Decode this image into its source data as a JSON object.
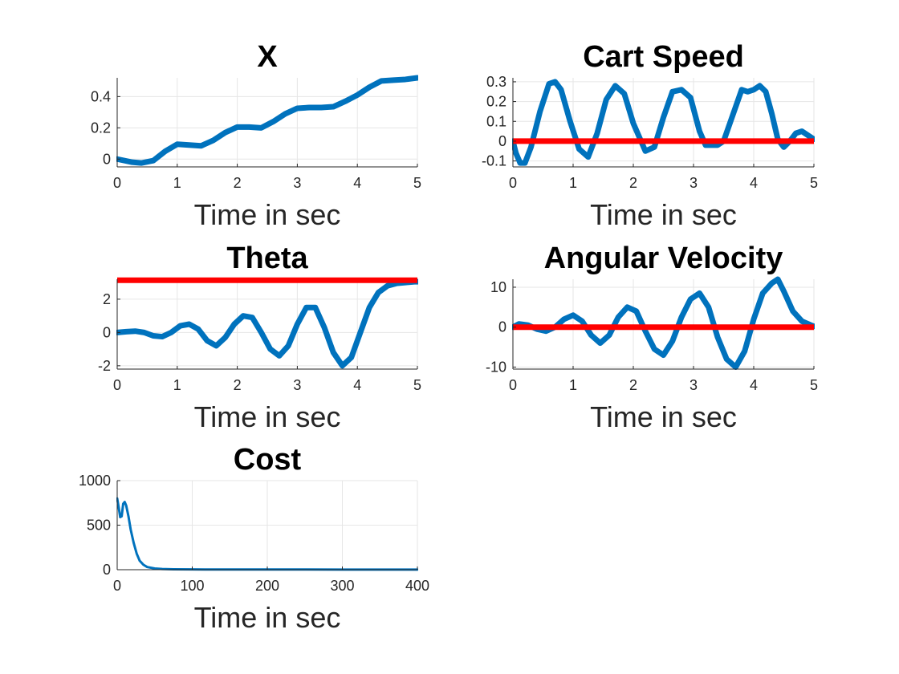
{
  "chart_data": [
    {
      "type": "line",
      "title": "X",
      "xlabel": "Time in sec",
      "ylabel": "",
      "xlim": [
        0,
        5
      ],
      "ylim": [
        -0.05,
        0.52
      ],
      "xticks": [
        0,
        1,
        2,
        3,
        4,
        5
      ],
      "yticks": [
        0,
        0.2,
        0.4
      ],
      "grid": true,
      "series": [
        {
          "color": "#0072BD",
          "style": "thick",
          "x": [
            0,
            0.25,
            0.4,
            0.6,
            0.8,
            1.0,
            1.2,
            1.4,
            1.6,
            1.8,
            2.0,
            2.2,
            2.4,
            2.6,
            2.8,
            3.0,
            3.2,
            3.4,
            3.6,
            3.8,
            4.0,
            4.2,
            4.4,
            4.6,
            4.8,
            5.0
          ],
          "y": [
            0.0,
            -0.02,
            -0.025,
            -0.01,
            0.05,
            0.095,
            0.09,
            0.085,
            0.12,
            0.17,
            0.205,
            0.205,
            0.2,
            0.24,
            0.29,
            0.325,
            0.33,
            0.33,
            0.335,
            0.37,
            0.41,
            0.46,
            0.5,
            0.505,
            0.51,
            0.52
          ]
        }
      ]
    },
    {
      "type": "line",
      "title": "Cart Speed",
      "xlabel": "Time in sec",
      "ylabel": "",
      "xlim": [
        0,
        5
      ],
      "ylim": [
        -0.13,
        0.32
      ],
      "xticks": [
        0,
        1,
        2,
        3,
        4,
        5
      ],
      "yticks": [
        -0.1,
        0,
        0.1,
        0.2,
        0.3
      ],
      "grid": true,
      "series": [
        {
          "color": "#0072BD",
          "style": "thick",
          "x": [
            0,
            0.05,
            0.12,
            0.2,
            0.3,
            0.45,
            0.6,
            0.7,
            0.8,
            0.95,
            1.1,
            1.25,
            1.4,
            1.55,
            1.7,
            1.85,
            2.0,
            2.2,
            2.35,
            2.5,
            2.65,
            2.8,
            2.95,
            3.1,
            3.2,
            3.3,
            3.4,
            3.5,
            3.65,
            3.8,
            3.9,
            4.0,
            4.1,
            4.2,
            4.3,
            4.4,
            4.5,
            4.6,
            4.7,
            4.8,
            4.9,
            5.0
          ],
          "y": [
            0.0,
            -0.06,
            -0.11,
            -0.11,
            -0.03,
            0.15,
            0.29,
            0.3,
            0.26,
            0.1,
            -0.04,
            -0.08,
            0.04,
            0.21,
            0.28,
            0.24,
            0.09,
            -0.05,
            -0.03,
            0.12,
            0.25,
            0.26,
            0.22,
            0.05,
            -0.02,
            -0.02,
            -0.02,
            0.0,
            0.13,
            0.26,
            0.25,
            0.26,
            0.28,
            0.25,
            0.14,
            0.01,
            -0.03,
            0.0,
            0.04,
            0.05,
            0.03,
            0.01
          ]
        },
        {
          "color": "#FF0000",
          "style": "thick",
          "x": [
            0,
            5
          ],
          "y": [
            0,
            0
          ]
        }
      ]
    },
    {
      "type": "line",
      "title": "Theta",
      "xlabel": "Time in sec",
      "ylabel": "",
      "xlim": [
        0,
        5
      ],
      "ylim": [
        -2.2,
        3.2
      ],
      "xticks": [
        0,
        1,
        2,
        3,
        4,
        5
      ],
      "yticks": [
        -2,
        0,
        2
      ],
      "grid": true,
      "series": [
        {
          "color": "#0072BD",
          "style": "thick",
          "x": [
            0,
            0.15,
            0.3,
            0.45,
            0.6,
            0.75,
            0.9,
            1.05,
            1.2,
            1.35,
            1.5,
            1.65,
            1.8,
            1.95,
            2.1,
            2.25,
            2.4,
            2.55,
            2.7,
            2.85,
            3.0,
            3.15,
            3.3,
            3.45,
            3.6,
            3.75,
            3.9,
            4.05,
            4.2,
            4.35,
            4.5,
            4.65,
            4.8,
            4.95,
            5.0
          ],
          "y": [
            0.0,
            0.05,
            0.08,
            0.0,
            -0.2,
            -0.25,
            0.0,
            0.4,
            0.5,
            0.2,
            -0.5,
            -0.8,
            -0.3,
            0.5,
            1.0,
            0.9,
            0.0,
            -1.0,
            -1.4,
            -0.8,
            0.5,
            1.5,
            1.5,
            0.3,
            -1.2,
            -2.0,
            -1.5,
            0.0,
            1.5,
            2.4,
            2.8,
            2.95,
            3.0,
            3.05,
            3.05
          ]
        },
        {
          "color": "#FF0000",
          "style": "thick",
          "x": [
            0,
            5
          ],
          "y": [
            3.1416,
            3.1416
          ]
        }
      ]
    },
    {
      "type": "line",
      "title": "Angular Velocity",
      "xlabel": "Time in sec",
      "ylabel": "",
      "xlim": [
        0,
        5
      ],
      "ylim": [
        -10.5,
        12
      ],
      "xticks": [
        0,
        1,
        2,
        3,
        4,
        5
      ],
      "yticks": [
        -10,
        0,
        10
      ],
      "grid": true,
      "series": [
        {
          "color": "#0072BD",
          "style": "thick",
          "x": [
            0,
            0.1,
            0.25,
            0.4,
            0.55,
            0.7,
            0.85,
            1.0,
            1.15,
            1.3,
            1.45,
            1.6,
            1.75,
            1.9,
            2.05,
            2.2,
            2.35,
            2.5,
            2.65,
            2.8,
            2.95,
            3.1,
            3.25,
            3.4,
            3.55,
            3.7,
            3.85,
            4.0,
            4.15,
            4.3,
            4.4,
            4.5,
            4.65,
            4.8,
            4.95,
            5.0
          ],
          "y": [
            0.0,
            0.8,
            0.5,
            -0.5,
            -1.0,
            0.0,
            2.0,
            3.0,
            1.5,
            -2.0,
            -4.0,
            -2.0,
            2.5,
            5.0,
            4.0,
            -1.0,
            -5.5,
            -7.0,
            -3.5,
            2.5,
            7.0,
            8.5,
            5.0,
            -2.5,
            -8.0,
            -10.0,
            -6.0,
            2.0,
            8.5,
            11.0,
            12.0,
            9.0,
            4.0,
            1.5,
            0.5,
            0.2
          ]
        },
        {
          "color": "#FF0000",
          "style": "thick",
          "x": [
            0,
            5
          ],
          "y": [
            0,
            0
          ]
        }
      ]
    },
    {
      "type": "line",
      "title": "Cost",
      "xlabel": "Time in sec",
      "ylabel": "",
      "xlim": [
        0,
        400
      ],
      "ylim": [
        0,
        1000
      ],
      "xticks": [
        0,
        100,
        200,
        300,
        400
      ],
      "yticks": [
        0,
        500,
        1000
      ],
      "grid": true,
      "series": [
        {
          "color": "#0072BD",
          "style": "thin",
          "x": [
            0,
            2,
            4,
            6,
            8,
            10,
            12,
            15,
            18,
            22,
            26,
            30,
            35,
            40,
            50,
            60,
            75,
            100,
            150,
            200,
            300,
            400
          ],
          "y": [
            800,
            700,
            590,
            600,
            740,
            760,
            720,
            600,
            450,
            300,
            180,
            100,
            55,
            30,
            14,
            8,
            5,
            3,
            2,
            2,
            1.5,
            1
          ]
        }
      ]
    }
  ]
}
